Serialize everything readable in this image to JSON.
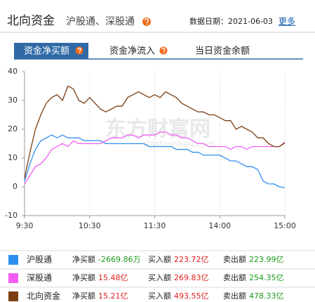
{
  "header": {
    "title": "北向资金",
    "subtitle": "沪股通、深股通",
    "date": "数据日期：2021-06-03",
    "more": "更多"
  },
  "tabs": [
    "资金净买额",
    "资金净流入",
    "当日资金余额"
  ],
  "watermark": "东方财富网",
  "watermark_url": "eastmoney.com",
  "chart_data": {
    "type": "line",
    "categories": [
      "9:30",
      null,
      null,
      null,
      null,
      null,
      null,
      null,
      null,
      null,
      null,
      null,
      "10:30",
      null,
      null,
      null,
      null,
      null,
      null,
      null,
      null,
      null,
      null,
      null,
      "11:30",
      null,
      null,
      null,
      null,
      null,
      null,
      null,
      null,
      null,
      null,
      null,
      "14:00",
      null,
      null,
      null,
      null,
      null,
      null,
      null,
      null,
      null,
      null,
      null,
      "15:00"
    ],
    "ylim": [
      -10,
      40
    ],
    "yticks": [
      -10,
      0,
      10,
      20,
      30,
      40
    ],
    "grid": true,
    "series": [
      {
        "name": "沪股通",
        "color": "#2f8ff0",
        "values": [
          2,
          8,
          13,
          16,
          17,
          18,
          17,
          18,
          17,
          17,
          17,
          16,
          16,
          16,
          16,
          15,
          15,
          15,
          15,
          15,
          15,
          15,
          15,
          14,
          14,
          14,
          14,
          14,
          13,
          13,
          13,
          12,
          12,
          11,
          11,
          11,
          11,
          10,
          9,
          9,
          8,
          7,
          7,
          6,
          2,
          1,
          1,
          0,
          -0.27
        ]
      },
      {
        "name": "深股通",
        "color": "#f25cf2",
        "values": [
          1,
          4,
          7,
          8,
          10,
          13,
          14,
          15,
          14,
          16,
          15,
          15,
          15,
          15,
          15,
          16,
          17,
          17,
          17,
          18,
          18,
          17,
          18,
          18,
          18,
          19,
          19,
          18,
          18,
          17,
          17,
          16,
          15,
          15,
          14,
          14,
          14,
          14,
          13,
          14,
          14,
          13,
          14,
          14,
          14,
          14,
          14,
          14,
          15.48
        ]
      },
      {
        "name": "北向资金",
        "color": "#7a3e12",
        "values": [
          3,
          12,
          20,
          25,
          29,
          31,
          32,
          30,
          35,
          34,
          30,
          29,
          31,
          29,
          27,
          26,
          27,
          28,
          28,
          31,
          32,
          33,
          32,
          31,
          32,
          31,
          33,
          32,
          31,
          29,
          28,
          27,
          26,
          26,
          25,
          25,
          24,
          23,
          23,
          20,
          21,
          20,
          19,
          17,
          17,
          15,
          14,
          14,
          15.21
        ]
      }
    ]
  },
  "table": {
    "rows": [
      [
        "净买额",
        "-2669.86万",
        "买入额",
        "223.72亿",
        "卖出额",
        "223.99亿"
      ],
      [
        "净买额",
        "15.48亿",
        "买入额",
        "269.83亿",
        "卖出额",
        "254.35亿"
      ],
      [
        "净买额",
        "15.21亿",
        "买入额",
        "493.55亿",
        "卖出额",
        "478.33亿"
      ]
    ]
  }
}
